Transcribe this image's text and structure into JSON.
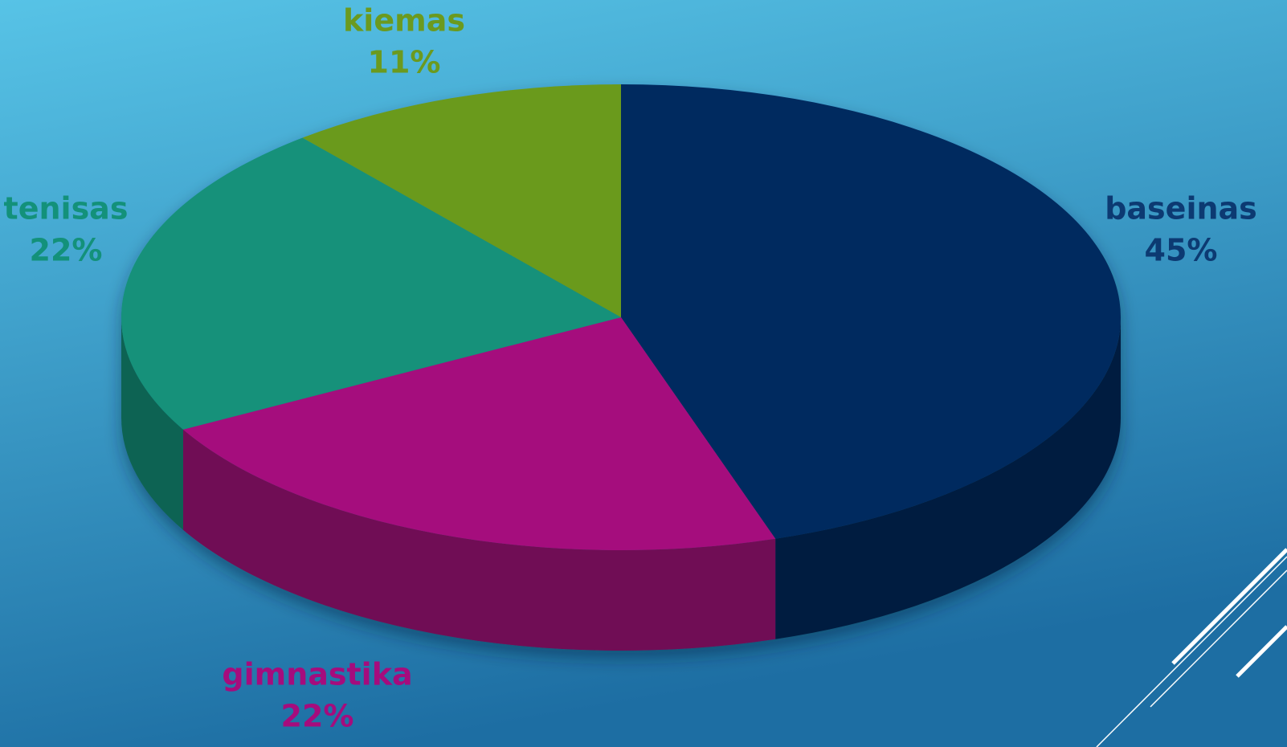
{
  "chart_data": {
    "type": "pie",
    "categories": [
      "baseinas",
      "gimnastika",
      "tenisas",
      "kiemas"
    ],
    "values": [
      45,
      22,
      22,
      11
    ],
    "value_labels": [
      "45%",
      "22%",
      "22%",
      "11%"
    ],
    "colors": [
      "#002b5e",
      "#a50c7d",
      "#13917a",
      "#6b9a1f"
    ]
  }
}
